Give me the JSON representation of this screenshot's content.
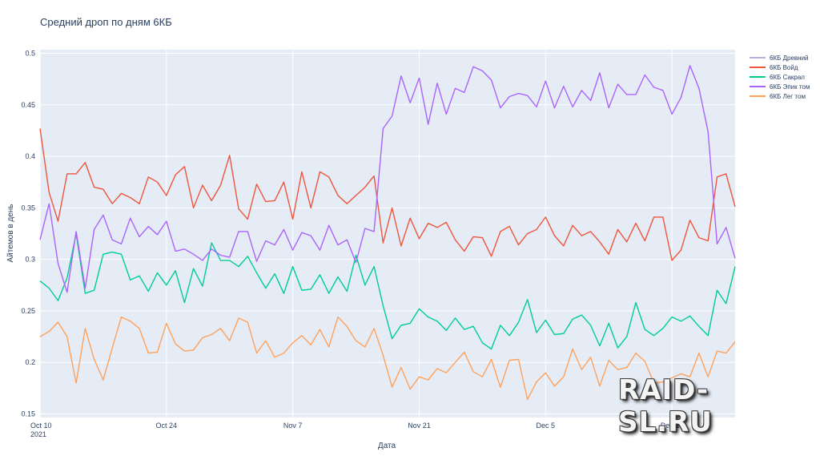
{
  "chart_data": {
    "type": "line",
    "title": "Средний дроп по дням 6КБ",
    "xlabel": "Дата",
    "ylabel": "Айтемов в день",
    "ylim": [
      0.1465,
      0.5035
    ],
    "yticks": [
      "0.15",
      "0.2",
      "0.25",
      "0.3",
      "0.35",
      "0.4",
      "0.45",
      "0.5"
    ],
    "xticks": [
      {
        "label": "Oct 10",
        "sub": "2021",
        "day": 0
      },
      {
        "label": "Oct 24",
        "sub": "",
        "day": 14
      },
      {
        "label": "Nov 7",
        "sub": "",
        "day": 28
      },
      {
        "label": "Nov 21",
        "sub": "",
        "day": 42
      },
      {
        "label": "Dec 5",
        "sub": "",
        "day": 56
      },
      {
        "label": "Dec 19",
        "sub": "",
        "day": 70
      }
    ],
    "x_start": "2021-10-10",
    "x_end": "2021-12-26",
    "grid": true,
    "legend_position": "right",
    "series": [
      {
        "name": "6КБ Древний",
        "color": "#b6b2e0",
        "values": []
      },
      {
        "name": "6КБ Войд",
        "color": "#ef553b",
        "values": [
          0.427,
          0.365,
          0.337,
          0.383,
          0.383,
          0.394,
          0.37,
          0.368,
          0.354,
          0.364,
          0.36,
          0.354,
          0.38,
          0.375,
          0.362,
          0.382,
          0.39,
          0.35,
          0.372,
          0.357,
          0.372,
          0.401,
          0.349,
          0.339,
          0.373,
          0.356,
          0.357,
          0.375,
          0.339,
          0.385,
          0.35,
          0.385,
          0.38,
          0.362,
          0.354,
          0.362,
          0.37,
          0.381,
          0.316,
          0.35,
          0.313,
          0.34,
          0.32,
          0.335,
          0.331,
          0.336,
          0.319,
          0.308,
          0.322,
          0.321,
          0.303,
          0.327,
          0.332,
          0.314,
          0.325,
          0.329,
          0.341,
          0.323,
          0.313,
          0.333,
          0.323,
          0.327,
          0.317,
          0.305,
          0.329,
          0.317,
          0.335,
          0.318,
          0.341,
          0.341,
          0.299,
          0.309,
          0.338,
          0.321,
          0.318,
          0.38,
          0.383,
          0.351
        ]
      },
      {
        "name": "6КБ Сакрал",
        "color": "#00cc96",
        "values": [
          0.279,
          0.272,
          0.26,
          0.282,
          0.325,
          0.267,
          0.27,
          0.305,
          0.307,
          0.305,
          0.28,
          0.284,
          0.269,
          0.287,
          0.275,
          0.289,
          0.258,
          0.291,
          0.274,
          0.316,
          0.299,
          0.299,
          0.293,
          0.303,
          0.287,
          0.272,
          0.286,
          0.267,
          0.293,
          0.27,
          0.271,
          0.285,
          0.267,
          0.283,
          0.269,
          0.304,
          0.275,
          0.293,
          0.255,
          0.223,
          0.236,
          0.238,
          0.252,
          0.244,
          0.24,
          0.231,
          0.243,
          0.232,
          0.235,
          0.219,
          0.213,
          0.236,
          0.226,
          0.239,
          0.261,
          0.229,
          0.241,
          0.227,
          0.228,
          0.242,
          0.246,
          0.236,
          0.216,
          0.238,
          0.214,
          0.225,
          0.258,
          0.232,
          0.226,
          0.233,
          0.244,
          0.24,
          0.245,
          0.235,
          0.226,
          0.27,
          0.257,
          0.293
        ]
      },
      {
        "name": "6КБ Эпик том",
        "color": "#ab63fa",
        "values": [
          0.319,
          0.354,
          0.296,
          0.268,
          0.327,
          0.272,
          0.329,
          0.343,
          0.319,
          0.315,
          0.34,
          0.322,
          0.332,
          0.324,
          0.337,
          0.308,
          0.31,
          0.305,
          0.299,
          0.31,
          0.304,
          0.302,
          0.327,
          0.327,
          0.298,
          0.318,
          0.314,
          0.329,
          0.309,
          0.326,
          0.323,
          0.309,
          0.333,
          0.314,
          0.319,
          0.297,
          0.33,
          0.327,
          0.427,
          0.439,
          0.478,
          0.452,
          0.476,
          0.431,
          0.471,
          0.441,
          0.466,
          0.462,
          0.487,
          0.483,
          0.474,
          0.447,
          0.458,
          0.461,
          0.459,
          0.448,
          0.473,
          0.447,
          0.468,
          0.448,
          0.464,
          0.454,
          0.481,
          0.447,
          0.47,
          0.46,
          0.46,
          0.479,
          0.467,
          0.464,
          0.441,
          0.457,
          0.488,
          0.466,
          0.424,
          0.315,
          0.331,
          0.301
        ]
      },
      {
        "name": "6КБ Лег том",
        "color": "#ffa15a",
        "values": [
          0.225,
          0.23,
          0.239,
          0.225,
          0.18,
          0.233,
          0.203,
          0.183,
          0.214,
          0.244,
          0.24,
          0.233,
          0.209,
          0.21,
          0.238,
          0.218,
          0.211,
          0.212,
          0.224,
          0.227,
          0.233,
          0.221,
          0.243,
          0.239,
          0.209,
          0.221,
          0.205,
          0.209,
          0.219,
          0.226,
          0.217,
          0.232,
          0.215,
          0.244,
          0.235,
          0.221,
          0.215,
          0.233,
          0.207,
          0.176,
          0.195,
          0.174,
          0.186,
          0.183,
          0.194,
          0.19,
          0.2,
          0.21,
          0.191,
          0.186,
          0.203,
          0.176,
          0.202,
          0.203,
          0.164,
          0.181,
          0.19,
          0.177,
          0.186,
          0.213,
          0.193,
          0.205,
          0.177,
          0.202,
          0.193,
          0.195,
          0.209,
          0.201,
          0.18,
          0.181,
          0.185,
          0.189,
          0.186,
          0.209,
          0.186,
          0.211,
          0.209,
          0.22
        ]
      }
    ]
  },
  "watermark": "RAID-SL.RU"
}
